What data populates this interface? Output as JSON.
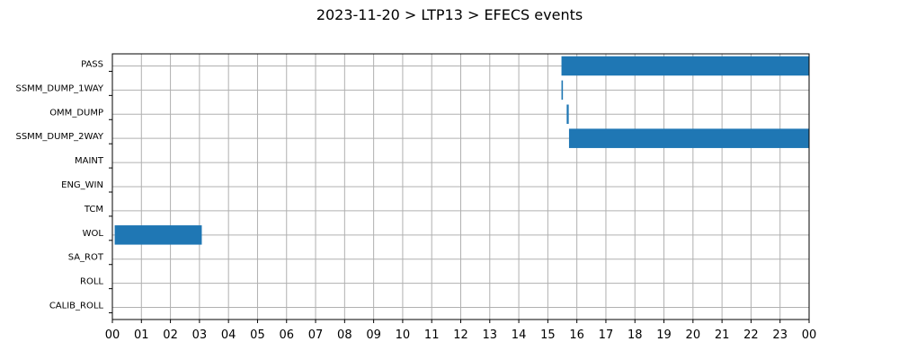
{
  "chart_data": {
    "type": "gantt",
    "title": "2023-11-20 > LTP13 > EFECS events",
    "xlabel": "",
    "ylabel": "",
    "xlim": [
      0,
      24
    ],
    "x_ticks": [
      "00",
      "01",
      "02",
      "03",
      "04",
      "05",
      "06",
      "07",
      "08",
      "09",
      "10",
      "11",
      "12",
      "13",
      "14",
      "15",
      "16",
      "17",
      "18",
      "19",
      "20",
      "21",
      "22",
      "23",
      "00"
    ],
    "categories": [
      "PASS",
      "SSMM_DUMP_1WAY",
      "OMM_DUMP",
      "SSMM_DUMP_2WAY",
      "MAINT",
      "ENG_WIN",
      "TCM",
      "WOL",
      "SA_ROT",
      "ROLL",
      "CALIB_ROLL"
    ],
    "grid": true,
    "bar_color": "#1f77b4",
    "events": [
      {
        "category": "PASS",
        "start": 15.47,
        "end": 24.0
      },
      {
        "category": "SSMM_DUMP_1WAY",
        "start": 15.47,
        "end": 15.52
      },
      {
        "category": "OMM_DUMP",
        "start": 15.65,
        "end": 15.72
      },
      {
        "category": "SSMM_DUMP_2WAY",
        "start": 15.73,
        "end": 24.0
      },
      {
        "category": "WOL",
        "start": 0.08,
        "end": 3.08
      }
    ]
  }
}
